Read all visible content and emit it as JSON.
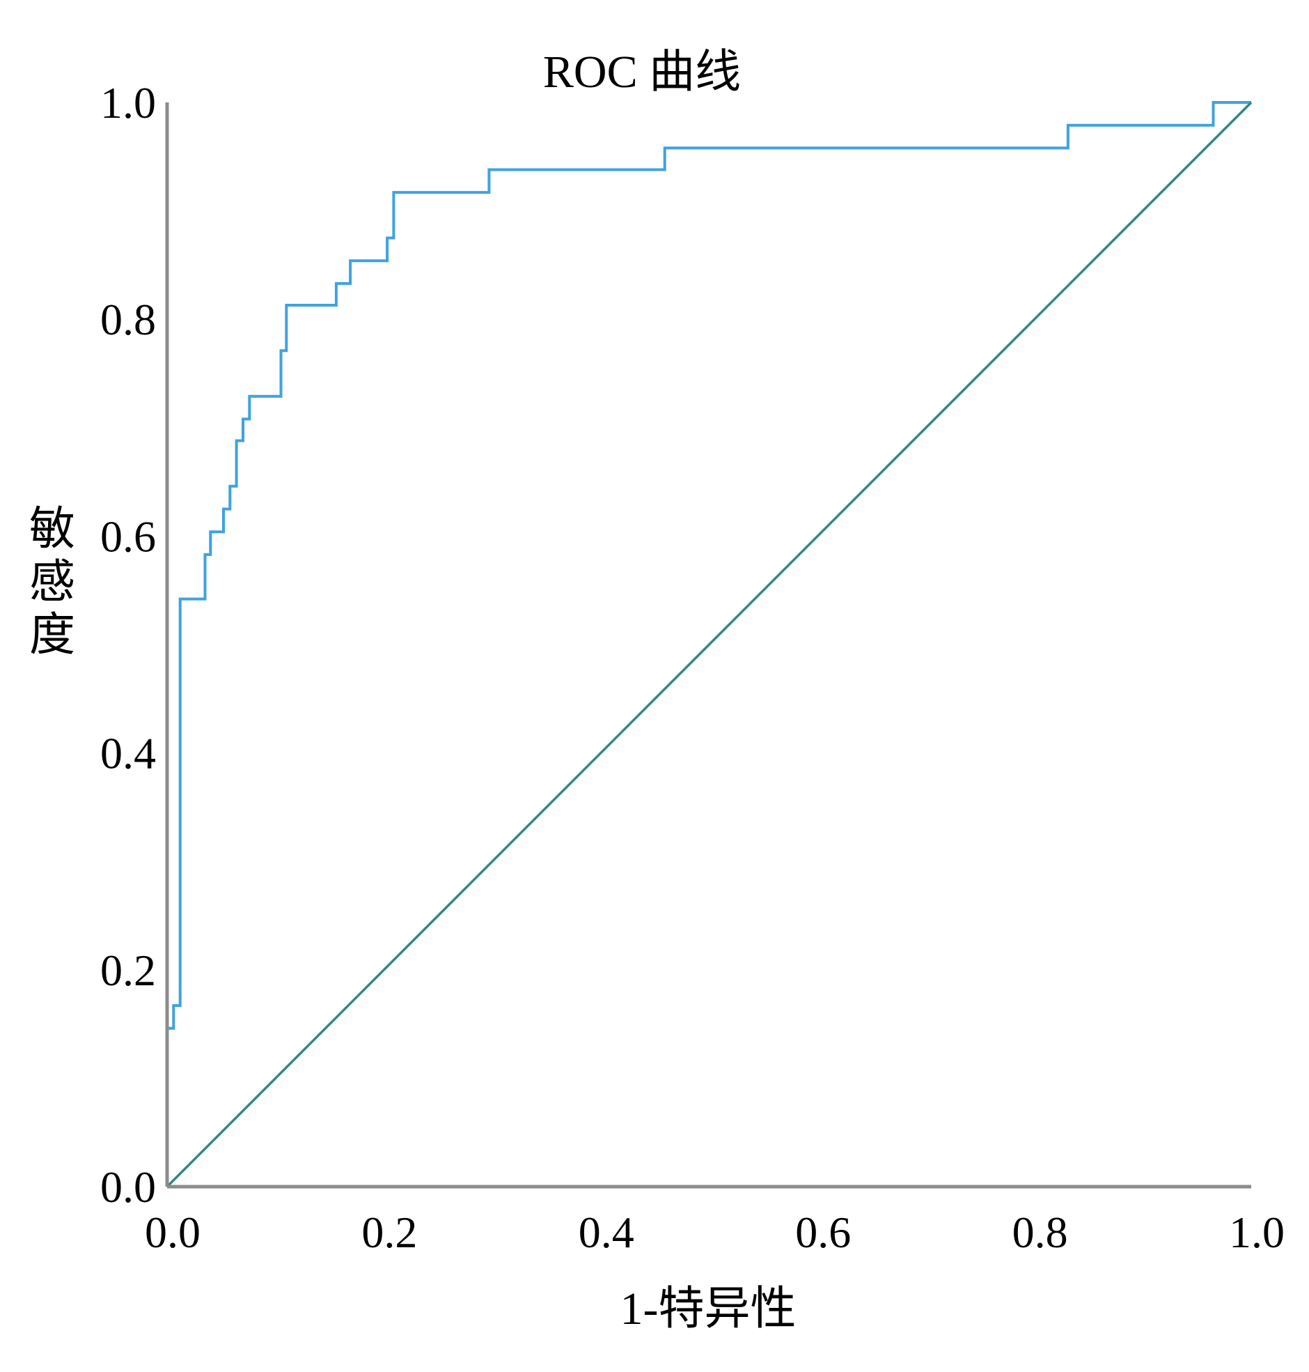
{
  "chart_data": {
    "type": "line",
    "title": "ROC  曲线",
    "xlabel": "1-特异性",
    "ylabel": "敏感度",
    "xlim": [
      0,
      1
    ],
    "ylim": [
      0,
      1
    ],
    "x_ticks": [
      "0.0",
      "0.2",
      "0.4",
      "0.6",
      "0.8",
      "1.0"
    ],
    "y_ticks": [
      "0.0",
      "0.2",
      "0.4",
      "0.6",
      "0.8",
      "1.0"
    ],
    "grid": false,
    "legend": "none",
    "series": [
      {
        "color": "#3fa2e0",
        "line_style": "step",
        "points": [
          [
            0.0,
            0.0
          ],
          [
            0.0,
            0.146
          ],
          [
            0.006,
            0.146
          ],
          [
            0.006,
            0.167
          ],
          [
            0.012,
            0.167
          ],
          [
            0.012,
            0.542
          ],
          [
            0.035,
            0.542
          ],
          [
            0.035,
            0.583
          ],
          [
            0.04,
            0.583
          ],
          [
            0.04,
            0.604
          ],
          [
            0.052,
            0.604
          ],
          [
            0.052,
            0.625
          ],
          [
            0.058,
            0.625
          ],
          [
            0.058,
            0.646
          ],
          [
            0.064,
            0.646
          ],
          [
            0.064,
            0.688
          ],
          [
            0.07,
            0.688
          ],
          [
            0.07,
            0.708
          ],
          [
            0.076,
            0.708
          ],
          [
            0.076,
            0.729
          ],
          [
            0.105,
            0.729
          ],
          [
            0.105,
            0.771
          ],
          [
            0.11,
            0.771
          ],
          [
            0.11,
            0.813
          ],
          [
            0.156,
            0.813
          ],
          [
            0.156,
            0.833
          ],
          [
            0.169,
            0.833
          ],
          [
            0.169,
            0.854
          ],
          [
            0.203,
            0.854
          ],
          [
            0.203,
            0.875
          ],
          [
            0.209,
            0.875
          ],
          [
            0.209,
            0.917
          ],
          [
            0.297,
            0.917
          ],
          [
            0.297,
            0.938
          ],
          [
            0.459,
            0.938
          ],
          [
            0.459,
            0.958
          ],
          [
            0.831,
            0.958
          ],
          [
            0.831,
            0.979
          ],
          [
            0.965,
            0.979
          ],
          [
            0.965,
            1.0
          ],
          [
            1.0,
            1.0
          ]
        ]
      },
      {
        "color": "#2e8a7c",
        "line_style": "reference",
        "points": [
          [
            0.0,
            0.0
          ],
          [
            1.0,
            1.0
          ]
        ]
      }
    ]
  }
}
